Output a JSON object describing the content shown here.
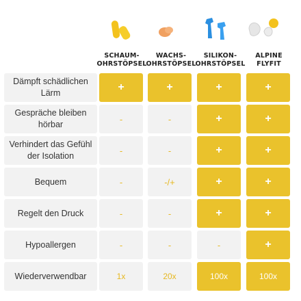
{
  "columns": [
    {
      "line1": "SCHAUM-",
      "line2": "OHRSTÖPSEL",
      "image": "yellow-foam-earplug-icon"
    },
    {
      "line1": "WACHS-",
      "line2": "OHRSTÖPSEL",
      "image": "orange-wax-earplug-icon"
    },
    {
      "line1": "SILIKON-",
      "line2": "OHRSTÖPSEL",
      "image": "blue-silicone-earplug-icon"
    },
    {
      "line1": "ALPINE",
      "line2": "FLYFIT",
      "image": "alpine-flyfit-earplug-icon"
    }
  ],
  "rows": [
    {
      "label": "Dämpft schädlichen Lärm",
      "cells": [
        "+",
        "+",
        "+",
        "+"
      ],
      "filled": [
        true,
        true,
        true,
        true
      ]
    },
    {
      "label": "Gespräche bleiben hörbar",
      "cells": [
        "-",
        "-",
        "+",
        "+"
      ],
      "filled": [
        false,
        false,
        true,
        true
      ]
    },
    {
      "label": "Verhindert das Gefühl der Isolation",
      "cells": [
        "-",
        "-",
        "+",
        "+"
      ],
      "filled": [
        false,
        false,
        true,
        true
      ]
    },
    {
      "label": "Bequem",
      "cells": [
        "-",
        "-/+",
        "+",
        "+"
      ],
      "filled": [
        false,
        false,
        true,
        true
      ]
    },
    {
      "label": "Regelt den Druck",
      "cells": [
        "-",
        "-",
        "+",
        "+"
      ],
      "filled": [
        false,
        false,
        true,
        true
      ]
    },
    {
      "label": "Hypoallergen",
      "cells": [
        "-",
        "-",
        "-",
        "+"
      ],
      "filled": [
        false,
        false,
        false,
        true
      ]
    },
    {
      "label": "Wiederverwendbar",
      "cells": [
        "1x",
        "20x",
        "100x",
        "100x"
      ],
      "filled": [
        false,
        false,
        true,
        true
      ]
    }
  ],
  "colors": {
    "accent": "#eac22c",
    "neutral": "#f2f2f2",
    "text": "#333333"
  }
}
